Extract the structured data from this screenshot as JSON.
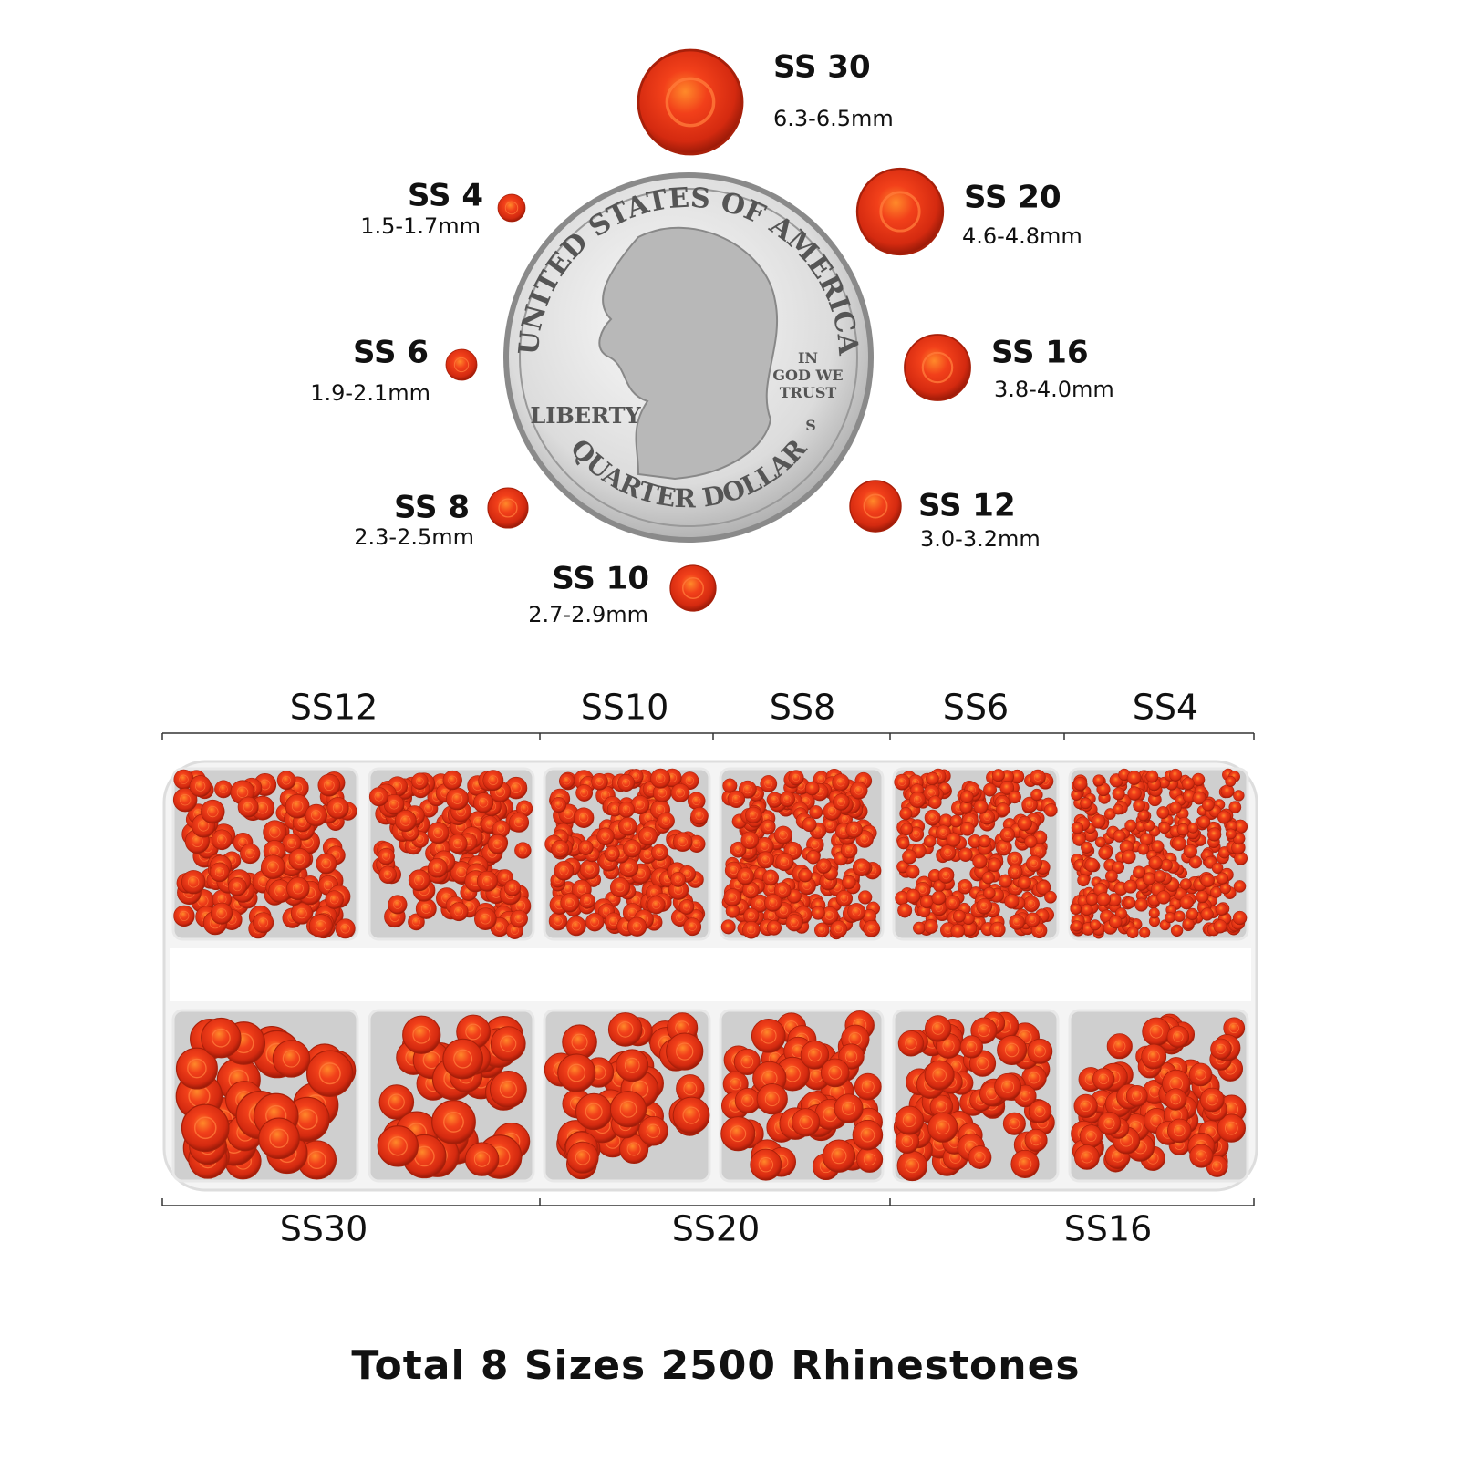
{
  "sizes": [
    {
      "label": "SS 30",
      "dimension": "6.3-6.5mm"
    },
    {
      "label": "SS 20",
      "dimension": "4.6-4.8mm"
    },
    {
      "label": "SS 16",
      "dimension": "3.8-4.0mm"
    },
    {
      "label": "SS 12",
      "dimension": "3.0-3.2mm"
    },
    {
      "label": "SS 10",
      "dimension": "2.7-2.9mm"
    },
    {
      "label": "SS 8",
      "dimension": "2.3-2.5mm"
    },
    {
      "label": "SS 6",
      "dimension": "1.9-2.1mm"
    },
    {
      "label": "SS 4",
      "dimension": "1.5-1.7mm"
    }
  ],
  "coin": {
    "top": "UNITED STATES OF AMERICA",
    "left": "LIBERTY",
    "motto": [
      "IN",
      "GOD WE",
      "TRUST"
    ],
    "bottom": "QUARTER DOLLAR",
    "mint": "S"
  },
  "tray": {
    "top_labels": [
      "SS12",
      "SS10",
      "SS8",
      "SS6",
      "SS4"
    ],
    "bottom_labels": [
      "SS30",
      "SS20",
      "SS16"
    ]
  },
  "footer": "Total 8 Sizes 2500 Rhinestones"
}
